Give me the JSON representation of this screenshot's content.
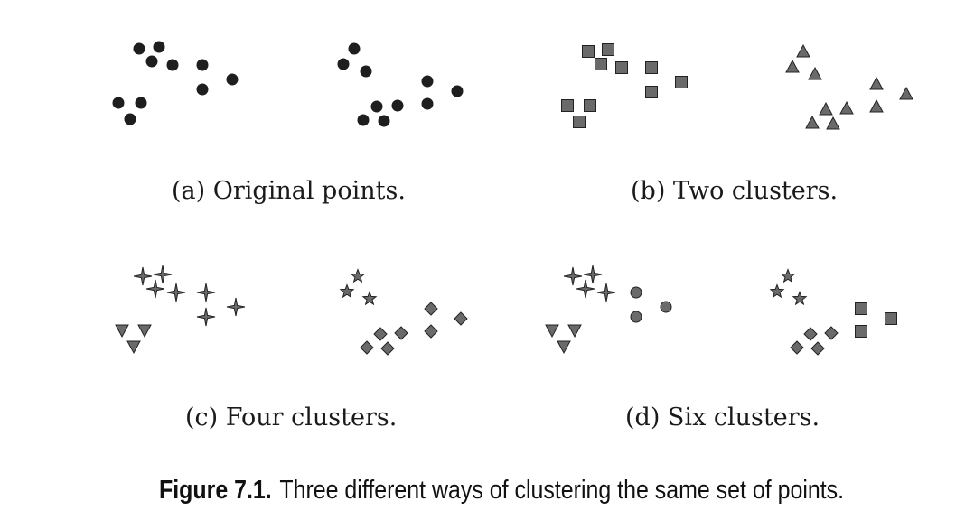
{
  "panels": [
    {
      "caption": "(a) Original points."
    },
    {
      "caption": "(b) Two clusters."
    },
    {
      "caption": "(c) Four clusters."
    },
    {
      "caption": "(d) Six clusters."
    }
  ],
  "figure_caption": {
    "number": "Figure 7.1.",
    "text": "Three different ways of clustering the same set of points."
  },
  "colors": {
    "point": "#1e1e1e",
    "marker_fill": "#6a6a6a",
    "marker_stroke": "#222222"
  },
  "marker_shapes": [
    "circle",
    "square",
    "triangle",
    "star4",
    "down-triangle",
    "star5",
    "diamond"
  ]
}
